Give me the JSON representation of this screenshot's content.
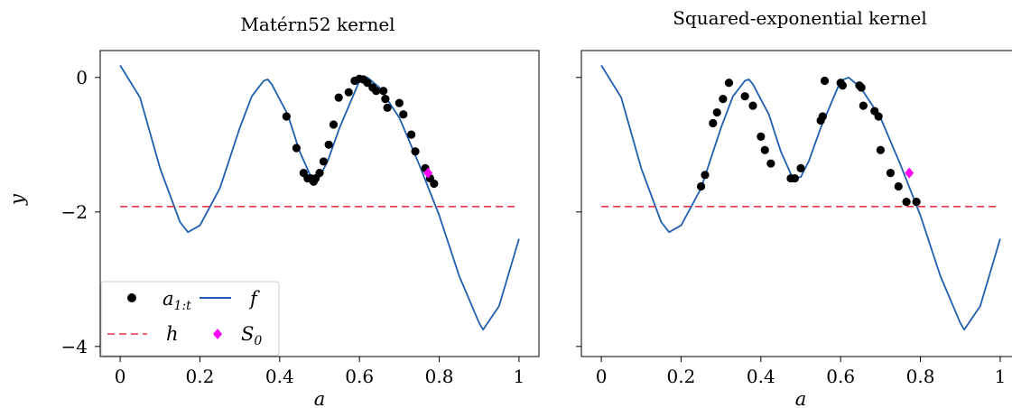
{
  "figure": {
    "ylabel": "y",
    "yticks": [
      0,
      -2,
      -4
    ],
    "ytick_labels": [
      "0",
      "−2",
      "−4"
    ],
    "xticks": [
      0,
      0.2,
      0.4,
      0.6,
      0.8,
      1
    ],
    "xtick_labels": [
      "0",
      "0.2",
      "0.4",
      "0.6",
      "0.8",
      "1"
    ],
    "colors": {
      "f": "#1f5fae",
      "h": "#e8334a",
      "samples": "#000000",
      "S0": "#ff00ff"
    },
    "legend": {
      "samples": "a",
      "samples_sub": "1:t",
      "f": "f",
      "h": "h",
      "S0": "S",
      "S0_sub": "0"
    }
  },
  "chart_data": [
    {
      "type": "line",
      "title": "Matérn52 kernel",
      "xlabel": "a",
      "ylabel": "y",
      "xlim": [
        -0.05,
        1.05
      ],
      "ylim": [
        -4.15,
        0.4
      ],
      "grid": false,
      "legend_position": "lower-left",
      "series": [
        {
          "name": "f",
          "style": "solid-line",
          "x": [
            0,
            0.05,
            0.1,
            0.15,
            0.17,
            0.2,
            0.25,
            0.3,
            0.33,
            0.36,
            0.37,
            0.38,
            0.42,
            0.45,
            0.48,
            0.5,
            0.52,
            0.55,
            0.6,
            0.62,
            0.65,
            0.7,
            0.75,
            0.8,
            0.85,
            0.9,
            0.91,
            0.95,
            1.0
          ],
          "y": [
            0.18,
            -0.3,
            -1.35,
            -2.15,
            -2.3,
            -2.2,
            -1.65,
            -0.75,
            -0.28,
            -0.05,
            -0.03,
            -0.1,
            -0.55,
            -1.1,
            -1.5,
            -1.48,
            -1.25,
            -0.75,
            -0.05,
            0.0,
            -0.15,
            -0.6,
            -1.3,
            -2.05,
            -2.95,
            -3.65,
            -3.75,
            -3.4,
            -2.4
          ]
        },
        {
          "name": "h",
          "style": "dashed-line",
          "x": [
            0,
            1
          ],
          "y": [
            -1.92,
            -1.92
          ]
        },
        {
          "name": "a_{1:t}",
          "style": "points",
          "x": [
            0.417,
            0.442,
            0.46,
            0.47,
            0.478,
            0.485,
            0.49,
            0.5,
            0.51,
            0.523,
            0.535,
            0.548,
            0.573,
            0.588,
            0.6,
            0.61,
            0.62,
            0.633,
            0.642,
            0.66,
            0.665,
            0.67,
            0.7,
            0.71,
            0.73,
            0.74,
            0.765,
            0.777,
            0.787
          ],
          "y": [
            -0.58,
            -1.05,
            -1.42,
            -1.5,
            -1.5,
            -1.55,
            -1.5,
            -1.42,
            -1.25,
            -1.0,
            -0.7,
            -0.3,
            -0.22,
            -0.05,
            -0.02,
            -0.03,
            -0.08,
            -0.15,
            -0.2,
            -0.2,
            -0.32,
            -0.45,
            -0.38,
            -0.55,
            -0.85,
            -1.1,
            -1.35,
            -1.5,
            -1.58
          ]
        },
        {
          "name": "S_0",
          "style": "diamond",
          "x": [
            0.772
          ],
          "y": [
            -1.42
          ]
        }
      ]
    },
    {
      "type": "line",
      "title": "Squared-exponential kernel",
      "xlabel": "a",
      "ylabel": "",
      "xlim": [
        -0.05,
        1.05
      ],
      "ylim": [
        -4.15,
        0.4
      ],
      "grid": false,
      "legend_position": "none",
      "series": [
        {
          "name": "f",
          "style": "solid-line",
          "x": [
            0,
            0.05,
            0.1,
            0.15,
            0.17,
            0.2,
            0.25,
            0.3,
            0.33,
            0.36,
            0.37,
            0.38,
            0.42,
            0.45,
            0.48,
            0.5,
            0.52,
            0.55,
            0.6,
            0.62,
            0.65,
            0.7,
            0.75,
            0.8,
            0.85,
            0.9,
            0.91,
            0.95,
            1.0
          ],
          "y": [
            0.18,
            -0.3,
            -1.35,
            -2.15,
            -2.3,
            -2.2,
            -1.65,
            -0.75,
            -0.28,
            -0.05,
            -0.03,
            -0.1,
            -0.55,
            -1.1,
            -1.5,
            -1.48,
            -1.25,
            -0.75,
            -0.05,
            0.0,
            -0.15,
            -0.6,
            -1.3,
            -2.05,
            -2.95,
            -3.65,
            -3.75,
            -3.4,
            -2.4
          ]
        },
        {
          "name": "h",
          "style": "dashed-line",
          "x": [
            0,
            1
          ],
          "y": [
            -1.92,
            -1.92
          ]
        },
        {
          "name": "a_{1:t}",
          "style": "points",
          "x": [
            0.25,
            0.26,
            0.28,
            0.29,
            0.305,
            0.32,
            0.36,
            0.38,
            0.4,
            0.41,
            0.425,
            0.475,
            0.485,
            0.5,
            0.55,
            0.555,
            0.56,
            0.6,
            0.605,
            0.647,
            0.652,
            0.657,
            0.685,
            0.695,
            0.7,
            0.725,
            0.745,
            0.765,
            0.79
          ],
          "y": [
            -1.62,
            -1.45,
            -0.68,
            -0.52,
            -0.32,
            -0.08,
            -0.28,
            -0.42,
            -0.88,
            -1.08,
            -1.28,
            -1.5,
            -1.5,
            -1.35,
            -0.64,
            -0.58,
            -0.05,
            -0.08,
            -0.12,
            -0.12,
            -0.15,
            -0.42,
            -0.5,
            -0.58,
            -1.08,
            -1.42,
            -1.62,
            -1.85,
            -1.85
          ]
        },
        {
          "name": "S_0",
          "style": "diamond",
          "x": [
            0.772
          ],
          "y": [
            -1.42
          ]
        }
      ]
    }
  ]
}
